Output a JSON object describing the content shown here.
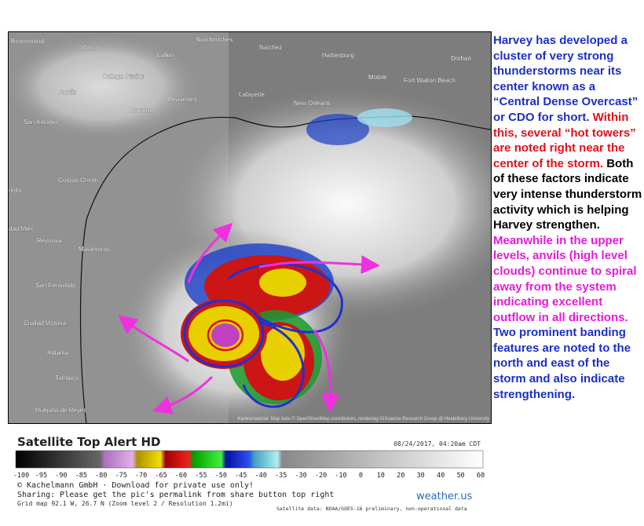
{
  "map": {
    "cities": [
      "Brownwood",
      "Waco",
      "Natchitoches",
      "Natchez",
      "Hattiesburg",
      "Dothan",
      "Lufkin",
      "College Station",
      "Mobile",
      "Fort Walton Beach",
      "Austin",
      "Beaumont",
      "Lafayette",
      "Houston",
      "New Orleans",
      "San Antonio",
      "Corpus Christi",
      "Laredo",
      "Ciudad Mier",
      "Reynosa",
      "Matamoros",
      "San Fernando",
      "Ciudad Victoria",
      "Aldama",
      "Tampico",
      "Huejutla de Reyes"
    ],
    "attribution": "Kartenmaterial: Map data © OpenStreetMap contributors, rendering GIScience Research Group @ Heidelberg University"
  },
  "legend": {
    "title": "Satellite Top Alert HD",
    "timestamp": "08/24/2017, 04:20am CDT",
    "ticks": [
      -100,
      -95,
      -90,
      -85,
      -80,
      -75,
      -70,
      -65,
      -60,
      -55,
      -50,
      -45,
      -40,
      -35,
      -30,
      -20,
      -10,
      0,
      10,
      20,
      30,
      40,
      50,
      60
    ],
    "copyright": "© Kachelmann GmbH · Download for private use only!",
    "sharing": "Sharing: Please get the pic's permalink from share button top right",
    "grid": "Grid map 92.1 W, 26.7 N (Zoom level 2 / Resolution 1.2mi)",
    "source": "Satellite data: NOAA/GOES-16 preliminary, non-operational data",
    "logo": "weather.us"
  },
  "annotation": [
    {
      "text": "Harvey has developed a cluster of very strong thunderstorms near its center known as a “Central Dense Overcast” or CDO for short.",
      "color": "#1c2fc4"
    },
    {
      "text": "Within this, several “hot towers” are noted right near the center of the storm.",
      "color": "#e3101a"
    },
    {
      "text": "Both of these factors indicate very intense thunderstorm activity which is helping Harvey strengthen.",
      "color": "#000000"
    },
    {
      "text": "Meanwhile in the upper levels, anvils (high level clouds) continue to spiral away from the system indicating excellent outflow in all directions.",
      "color": "#e619d9"
    },
    {
      "text": "Two prominent banding features are noted to the north and east of the storm and also indicate strengthening.",
      "color": "#1c2fc4"
    }
  ]
}
